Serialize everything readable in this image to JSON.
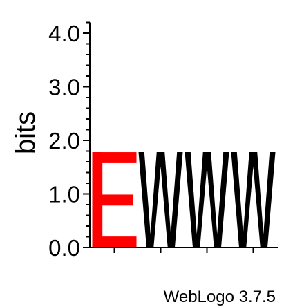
{
  "chart_data": {
    "type": "sequence-logo",
    "ylabel": "bits",
    "ylim": [
      0,
      4.2
    ],
    "yticks": [
      {
        "value": 0.0,
        "label": "0.0"
      },
      {
        "value": 1.0,
        "label": "1.0"
      },
      {
        "value": 2.0,
        "label": "2.0"
      },
      {
        "value": 3.0,
        "label": "3.0"
      },
      {
        "value": 4.0,
        "label": "4.0"
      }
    ],
    "minor_tick_step": 0.2,
    "positions": [
      {
        "position": 1,
        "stack": [
          {
            "letter": "E",
            "bits": 1.78,
            "color": "#ff0000"
          }
        ]
      },
      {
        "position": 2,
        "stack": [
          {
            "letter": "W",
            "bits": 1.78,
            "color": "#000000"
          }
        ]
      },
      {
        "position": 3,
        "stack": [
          {
            "letter": "W",
            "bits": 1.78,
            "color": "#000000"
          }
        ]
      },
      {
        "position": 4,
        "stack": [
          {
            "letter": "W",
            "bits": 1.78,
            "color": "#000000"
          }
        ]
      }
    ]
  },
  "footer": {
    "credit": "WebLogo 3.7.5"
  }
}
